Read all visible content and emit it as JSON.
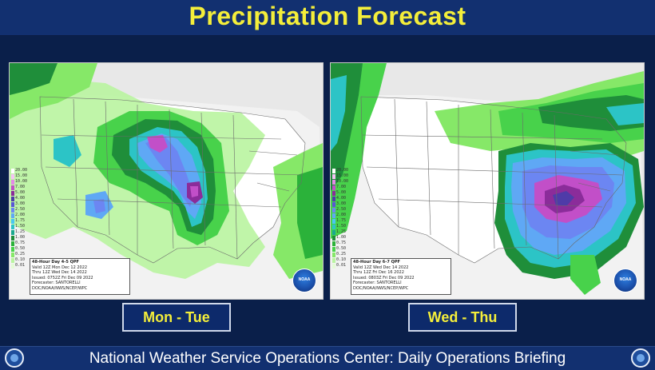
{
  "header": {
    "title": "Precipitation Forecast"
  },
  "legend": {
    "values": [
      "20.00",
      "15.00",
      "10.00",
      "7.00",
      "5.00",
      "4.00",
      "3.00",
      "2.50",
      "2.00",
      "1.75",
      "1.50",
      "1.25",
      "1.00",
      "0.75",
      "0.50",
      "0.25",
      "0.10",
      "0.01"
    ],
    "colors": [
      "#ffffff",
      "#f4c3f4",
      "#e48ae6",
      "#c24fc8",
      "#8b2c9a",
      "#4f3ba8",
      "#5a56d6",
      "#6c86f2",
      "#5fa8f5",
      "#49c6f2",
      "#2cc4c6",
      "#1ba98f",
      "#1f8e3a",
      "#2bb23a",
      "#48d24b",
      "#86e868",
      "#b9f4a0",
      "#e4fbd6"
    ]
  },
  "maps": [
    {
      "id": "left",
      "info_lines": [
        "48-Hour Day 4-5 QPF",
        "Valid 12Z Mon Dec 12 2022",
        "Thru 12Z Wed Dec 14 2022",
        "Issued: 0752Z Fri Dec 09 2022",
        "Forecaster: SANTORELLI",
        "DOC/NOAA/NWS/NCEP/WPC"
      ],
      "logo_text": "NOAA"
    },
    {
      "id": "right",
      "info_lines": [
        "48-Hour Day 6-7 QPF",
        "Valid 12Z Wed Dec 14 2022",
        "Thru 12Z Fri Dec 16 2022",
        "Issued: 0803Z Fri Dec 09 2022",
        "Forecaster: SANTORELLI",
        "DOC/NOAA/NWS/NCEP/WPC"
      ],
      "logo_text": "NOAA"
    }
  ],
  "periods": {
    "left": "Mon - Tue",
    "right": "Wed - Thu"
  },
  "footer": {
    "text": "National Weather Service Operations Center: Daily Operations Briefing"
  }
}
